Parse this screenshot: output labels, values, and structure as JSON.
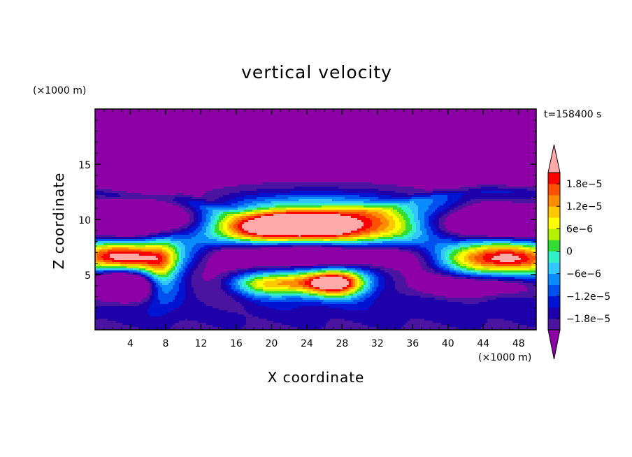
{
  "chart_data": {
    "type": "heatmap",
    "title": "vertical velocity",
    "xlabel": "X coordinate",
    "ylabel": "Z coordinate",
    "x_unit": "(×1000 m)",
    "y_unit": "(×1000 m)",
    "time_label": "t=158400 s",
    "xlim": [
      0,
      50
    ],
    "ylim": [
      0,
      20
    ],
    "x_ticks": [
      4,
      8,
      12,
      16,
      20,
      24,
      28,
      32,
      36,
      40,
      44,
      48
    ],
    "y_ticks": [
      5,
      10,
      15
    ],
    "colorbar": {
      "levels": [
        -2.1e-05,
        -1.8e-05,
        -1.5e-05,
        -1.2e-05,
        -9e-06,
        -6e-06,
        -3e-06,
        0,
        3e-06,
        6e-06,
        9e-06,
        1.2e-05,
        1.5e-05,
        1.8e-05,
        2.1e-05
      ],
      "tick_labels": [
        {
          "value": 1.8e-05,
          "label": "1.8e−5"
        },
        {
          "value": 1.2e-05,
          "label": "1.2e−5"
        },
        {
          "value": 6e-06,
          "label": "6e−6"
        },
        {
          "value": 0,
          "label": "0"
        },
        {
          "value": -6e-06,
          "label": "−6e−6"
        },
        {
          "value": -1.2e-05,
          "label": "−1.2e−5"
        },
        {
          "value": -1.8e-05,
          "label": "−1.8e−5"
        }
      ],
      "colors": [
        "#8c00a5",
        "#4b14a0",
        "#1e00aa",
        "#0014d2",
        "#0050f0",
        "#0a8cff",
        "#32c8ff",
        "#32f0c8",
        "#32dc32",
        "#b4f000",
        "#ffff00",
        "#ffc800",
        "#ff8c00",
        "#ff5000",
        "#ff0000",
        "#ffaaaa"
      ],
      "extend": "both"
    },
    "field": {
      "background": -2.5e-05,
      "top_boundary_z": [
        [
          0,
          13.2
        ],
        [
          10,
          12.5
        ],
        [
          16,
          11.1
        ],
        [
          24,
          11.1
        ],
        [
          32,
          11.6
        ],
        [
          38,
          12.7
        ],
        [
          44,
          13.4
        ],
        [
          50,
          13.3
        ]
      ],
      "features": [
        {
          "x": 25,
          "z": 9.5,
          "sx": 11,
          "sz": 1.8,
          "amp": 4.2e-05
        },
        {
          "x": 21,
          "z": 9.3,
          "sx": 4.5,
          "sz": 0.8,
          "amp": 1.6e-05
        },
        {
          "x": 3,
          "z": 6.6,
          "sx": 4.5,
          "sz": 1.0,
          "amp": 3.8e-05
        },
        {
          "x": 46,
          "z": 6.5,
          "sx": 5.5,
          "sz": 1.1,
          "amp": 3.8e-05
        },
        {
          "x": 21,
          "z": 4.2,
          "sx": 4.5,
          "sz": 0.8,
          "amp": 2.8e-05
        },
        {
          "x": 27.5,
          "z": 4.3,
          "sx": 2.3,
          "sz": 0.9,
          "amp": 3.6e-05
        },
        {
          "x": 7.5,
          "z": 5.2,
          "sx": 1.4,
          "sz": 2.0,
          "amp": 1.6e-05
        },
        {
          "x": 5,
          "z": 9.9,
          "sx": 6.5,
          "sz": 1.2,
          "amp": -3.4e-05
        },
        {
          "x": 45,
          "z": 9.7,
          "sx": 6,
          "sz": 1.2,
          "amp": -3.4e-05
        },
        {
          "x": 24,
          "z": 6.9,
          "sx": 7.5,
          "sz": 0.9,
          "amp": -3.6e-05
        },
        {
          "x": 3,
          "z": 4.1,
          "sx": 2.6,
          "sz": 0.9,
          "amp": -3.4e-05
        },
        {
          "x": 43,
          "z": 4.0,
          "sx": 4.5,
          "sz": 0.7,
          "amp": -1.6e-05
        },
        {
          "x": 37,
          "z": 6.2,
          "sx": 3.5,
          "sz": 1.5,
          "amp": -1.2e-05
        },
        {
          "x": 14,
          "z": 4.6,
          "sx": 2.5,
          "sz": 1.5,
          "amp": -1.2e-05
        }
      ]
    }
  }
}
